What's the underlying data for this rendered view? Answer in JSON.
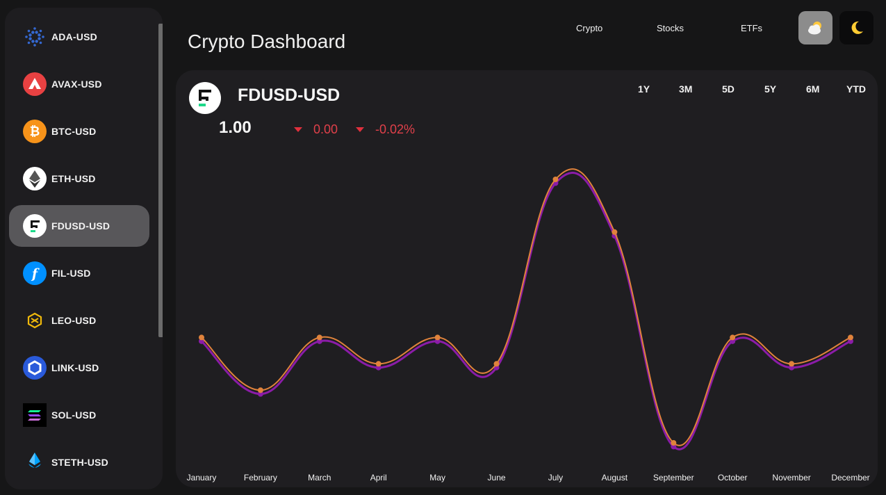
{
  "header": {
    "title": "Crypto Dashboard"
  },
  "nav": [
    {
      "label": "Crypto"
    },
    {
      "label": "Stocks"
    },
    {
      "label": "ETFs"
    }
  ],
  "theme_buttons": [
    {
      "icon": "sun-behind-cloud-icon"
    },
    {
      "icon": "moon-icon"
    }
  ],
  "sidebar": {
    "items": [
      {
        "label": "ADA-USD",
        "icon": "cardano-icon",
        "color": "#1a3fb0"
      },
      {
        "label": "AVAX-USD",
        "icon": "avalanche-icon",
        "color": "#e84142"
      },
      {
        "label": "BTC-USD",
        "icon": "bitcoin-icon",
        "color": "#f7931a"
      },
      {
        "label": "ETH-USD",
        "icon": "ethereum-icon",
        "color": "#ffffff"
      },
      {
        "label": "FDUSD-USD",
        "icon": "fdusd-icon",
        "color": "#ffffff",
        "active": true
      },
      {
        "label": "FIL-USD",
        "icon": "filecoin-icon",
        "color": "#0090ff"
      },
      {
        "label": "LEO-USD",
        "icon": "leo-icon",
        "color": "#f0b90b"
      },
      {
        "label": "LINK-USD",
        "icon": "chainlink-icon",
        "color": "#2a5ada"
      },
      {
        "label": "SOL-USD",
        "icon": "solana-icon",
        "color": "#000000"
      },
      {
        "label": "STETH-USD",
        "icon": "lido-icon",
        "color": "#00a3ff"
      }
    ]
  },
  "asset": {
    "name": "FDUSD-USD",
    "price": "1.00",
    "change": "0.00",
    "change_pct": "-0.02%",
    "negative_color": "#e0404a"
  },
  "ranges": [
    "1Y",
    "3M",
    "5D",
    "5Y",
    "6M",
    "YTD"
  ],
  "chart_data": {
    "type": "line",
    "categories": [
      "January",
      "February",
      "March",
      "April",
      "May",
      "June",
      "July",
      "August",
      "September",
      "October",
      "November",
      "December"
    ],
    "series": [
      {
        "color": "#e0833c",
        "values": [
          0.9993,
          0.9979,
          0.9993,
          0.9986,
          0.9993,
          0.9986,
          1.0035,
          1.0021,
          0.9965,
          0.9993,
          0.9986,
          0.9993
        ]
      },
      {
        "color": "#8b1ca8",
        "values": [
          0.9992,
          0.9978,
          0.9992,
          0.9985,
          0.9992,
          0.9985,
          1.0034,
          1.002,
          0.9964,
          0.9992,
          0.9985,
          0.9992
        ]
      }
    ],
    "ylim": [
      0.9962,
      1.004
    ],
    "grid": false,
    "legend": "none"
  }
}
